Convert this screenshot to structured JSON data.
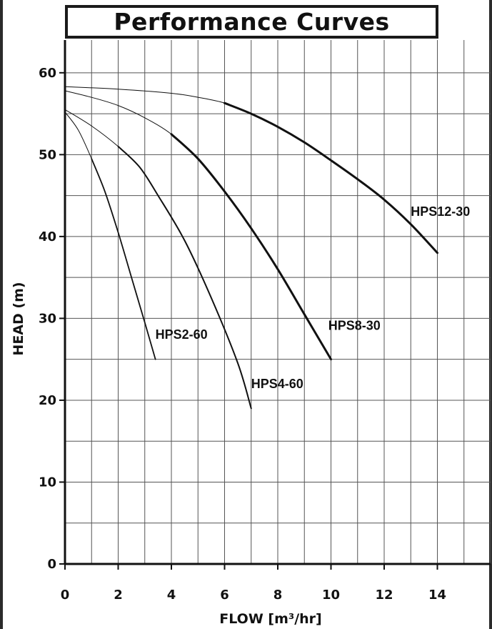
{
  "chart_data": {
    "type": "line",
    "title": "Performance Curves",
    "xlabel": "FLOW [m³/hr]",
    "ylabel": "HEAD (m)",
    "xlim": [
      0,
      16
    ],
    "ylim": [
      0,
      64
    ],
    "x_ticks": [
      0,
      2,
      4,
      6,
      8,
      10,
      12,
      14
    ],
    "y_ticks": [
      0,
      10,
      20,
      30,
      40,
      50,
      60
    ],
    "grid": true,
    "series": [
      {
        "name": "HPS2-60",
        "x": [
          0,
          0.5,
          1.0,
          1.5,
          2.0,
          2.5,
          3.0,
          3.4
        ],
        "y": [
          55.2,
          53.0,
          49.5,
          45.5,
          40.5,
          35.0,
          29.5,
          25.0
        ]
      },
      {
        "name": "HPS4-60",
        "x": [
          0,
          1,
          2,
          2.8,
          3.5,
          4.5,
          5.5,
          6.5,
          7.0
        ],
        "y": [
          55.5,
          53.5,
          51.0,
          48.5,
          45.0,
          39.5,
          32.5,
          24.5,
          19.0
        ]
      },
      {
        "name": "HPS8-30",
        "x": [
          0,
          1,
          2,
          3,
          4,
          5,
          6,
          7,
          8,
          9,
          10
        ],
        "y": [
          57.8,
          57.0,
          56.0,
          54.5,
          52.5,
          49.5,
          45.5,
          41.0,
          36.0,
          30.5,
          25.0
        ]
      },
      {
        "name": "HPS12-30",
        "x": [
          0,
          2,
          4,
          5,
          6,
          7,
          8,
          9,
          10,
          11,
          12,
          13,
          14
        ],
        "y": [
          58.3,
          58.0,
          57.5,
          57.0,
          56.3,
          55.0,
          53.4,
          51.5,
          49.3,
          47.0,
          44.5,
          41.5,
          38.0
        ]
      }
    ]
  }
}
